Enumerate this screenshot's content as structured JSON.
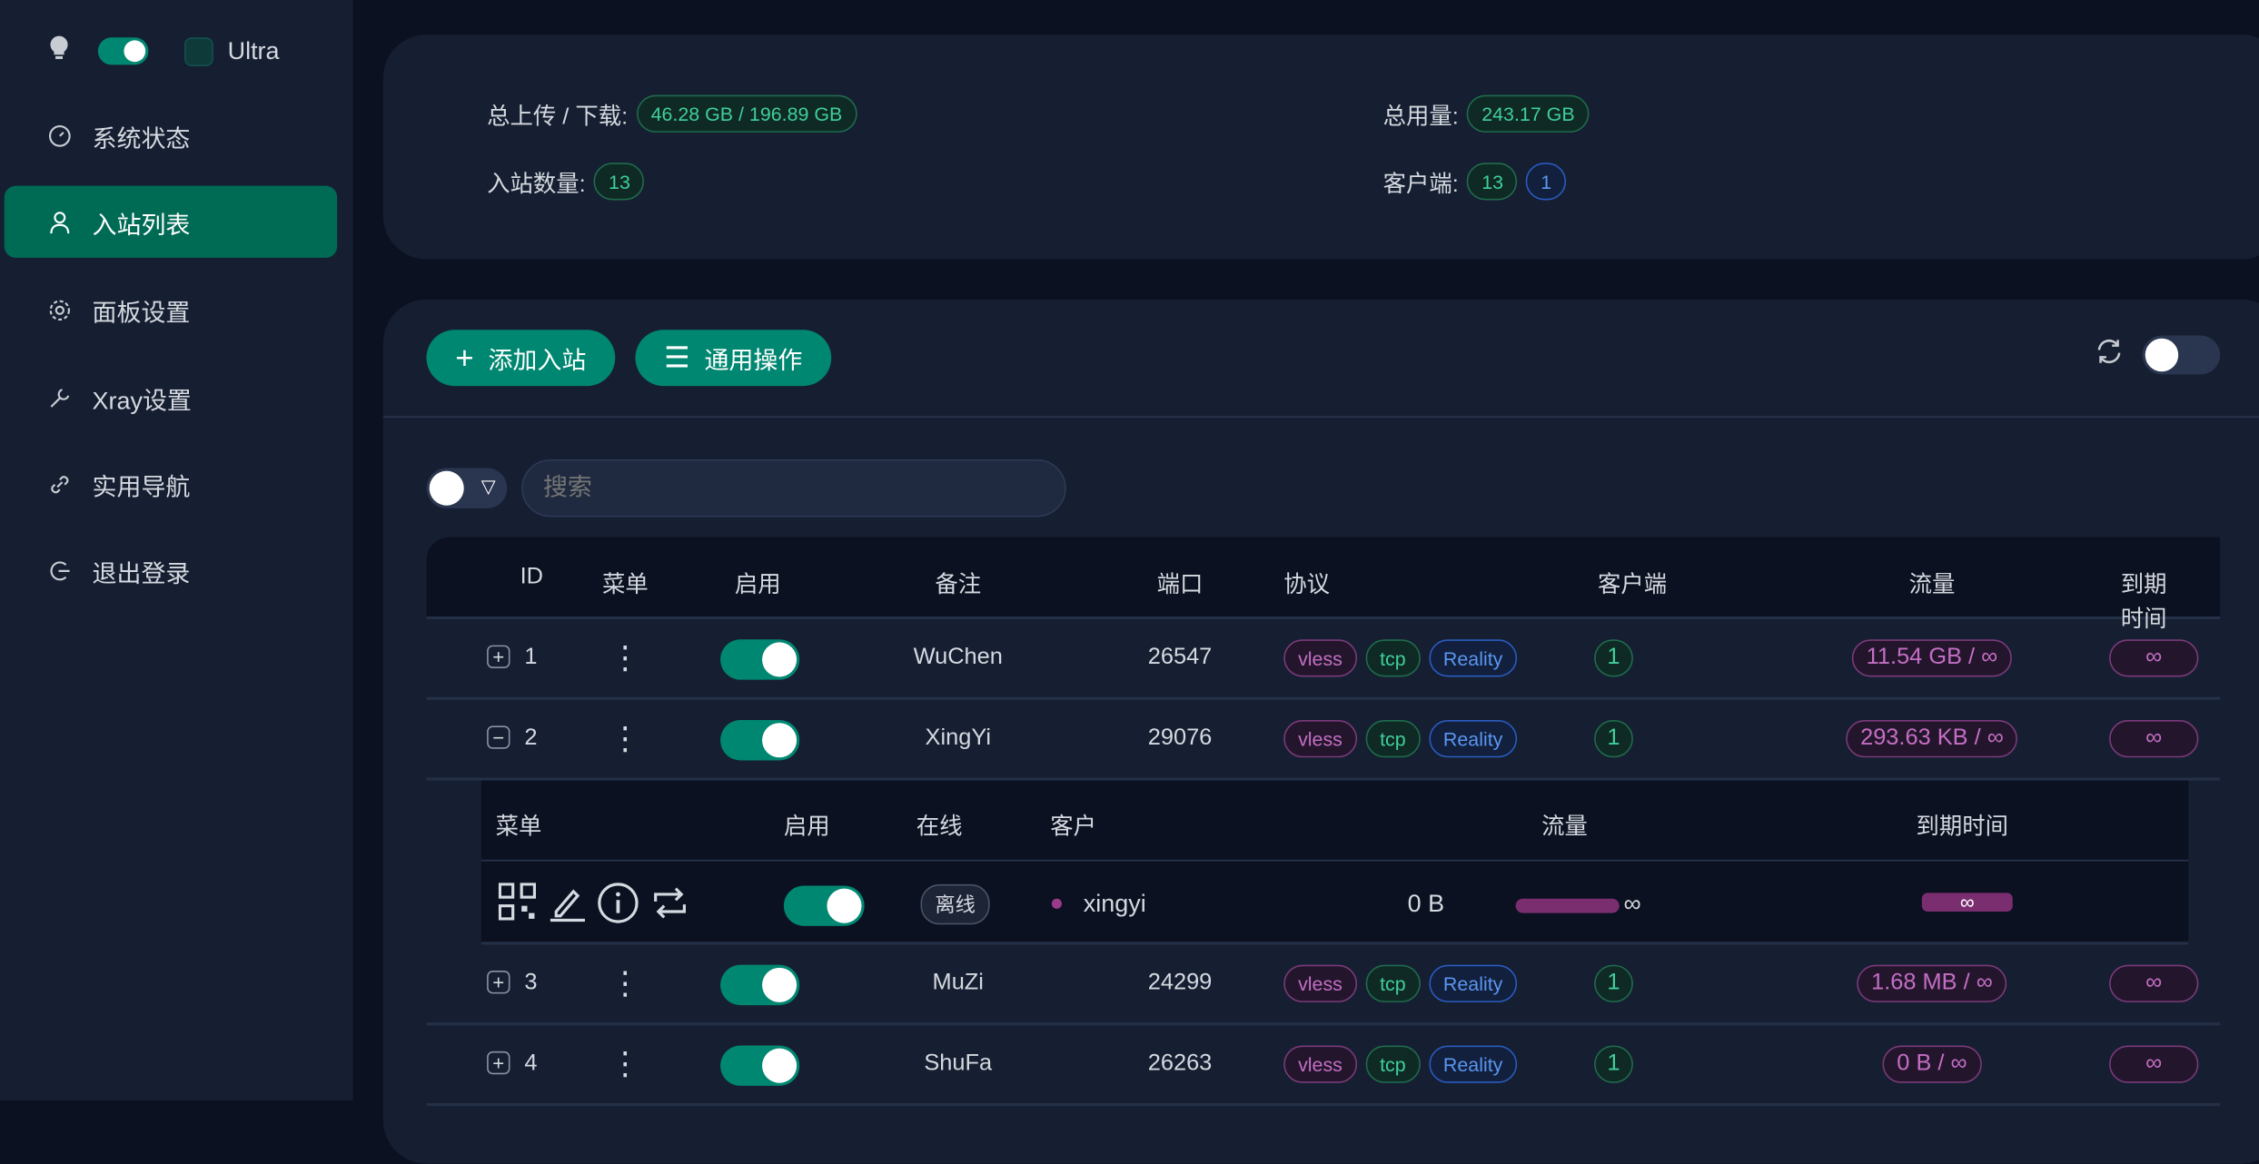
{
  "sidebar": {
    "theme_label": "Ultra",
    "items": [
      {
        "label": "系统状态",
        "icon": "dashboard-icon"
      },
      {
        "label": "入站列表",
        "icon": "user-icon",
        "active": true
      },
      {
        "label": "面板设置",
        "icon": "gear-icon"
      },
      {
        "label": "Xray设置",
        "icon": "wrench-icon"
      },
      {
        "label": "实用导航",
        "icon": "link-icon"
      },
      {
        "label": "退出登录",
        "icon": "logout-icon"
      }
    ]
  },
  "stats": {
    "updown_label": "总上传 / 下载:",
    "updown_value": "46.28 GB / 196.89 GB",
    "total_label": "总用量:",
    "total_value": "243.17 GB",
    "inbound_count_label": "入站数量:",
    "inbound_count": "13",
    "clients_label": "客户端:",
    "clients_total": "13",
    "clients_online": "1"
  },
  "toolbar": {
    "add_label": "添加入站",
    "general_label": "通用操作",
    "search_placeholder": "搜索"
  },
  "table": {
    "headers": [
      "ID",
      "菜单",
      "启用",
      "备注",
      "端口",
      "协议",
      "客户端",
      "流量",
      "到期时间"
    ],
    "rows": [
      {
        "id": "1",
        "remark": "WuChen",
        "port": "26547",
        "protocol": "vless",
        "network": "tcp",
        "security": "Reality",
        "clients": "1",
        "traffic": "11.54 GB / ∞",
        "expiry": "∞",
        "enabled": true,
        "expanded": false
      },
      {
        "id": "2",
        "remark": "XingYi",
        "port": "29076",
        "protocol": "vless",
        "network": "tcp",
        "security": "Reality",
        "clients": "1",
        "traffic": "293.63 KB / ∞",
        "expiry": "∞",
        "enabled": true,
        "expanded": true
      },
      {
        "id": "3",
        "remark": "MuZi",
        "port": "24299",
        "protocol": "vless",
        "network": "tcp",
        "security": "Reality",
        "clients": "1",
        "traffic": "1.68 MB / ∞",
        "expiry": "∞",
        "enabled": true,
        "expanded": false
      },
      {
        "id": "4",
        "remark": "ShuFa",
        "port": "26263",
        "protocol": "vless",
        "network": "tcp",
        "security": "Reality",
        "clients": "1",
        "traffic": "0 B / ∞",
        "expiry": "∞",
        "enabled": true,
        "expanded": false
      }
    ]
  },
  "client_table": {
    "headers": [
      "菜单",
      "启用",
      "在线",
      "客户",
      "流量",
      "到期时间"
    ],
    "rows": [
      {
        "status": "离线",
        "email": "xingyi",
        "traffic": "0 B",
        "traffic_limit": "∞",
        "expiry": "∞",
        "enabled": true
      }
    ]
  },
  "colors": {
    "accent": "#008771",
    "active_nav": "#006b55",
    "purple": "#7a3a7a",
    "blue": "#2a5bc0"
  }
}
